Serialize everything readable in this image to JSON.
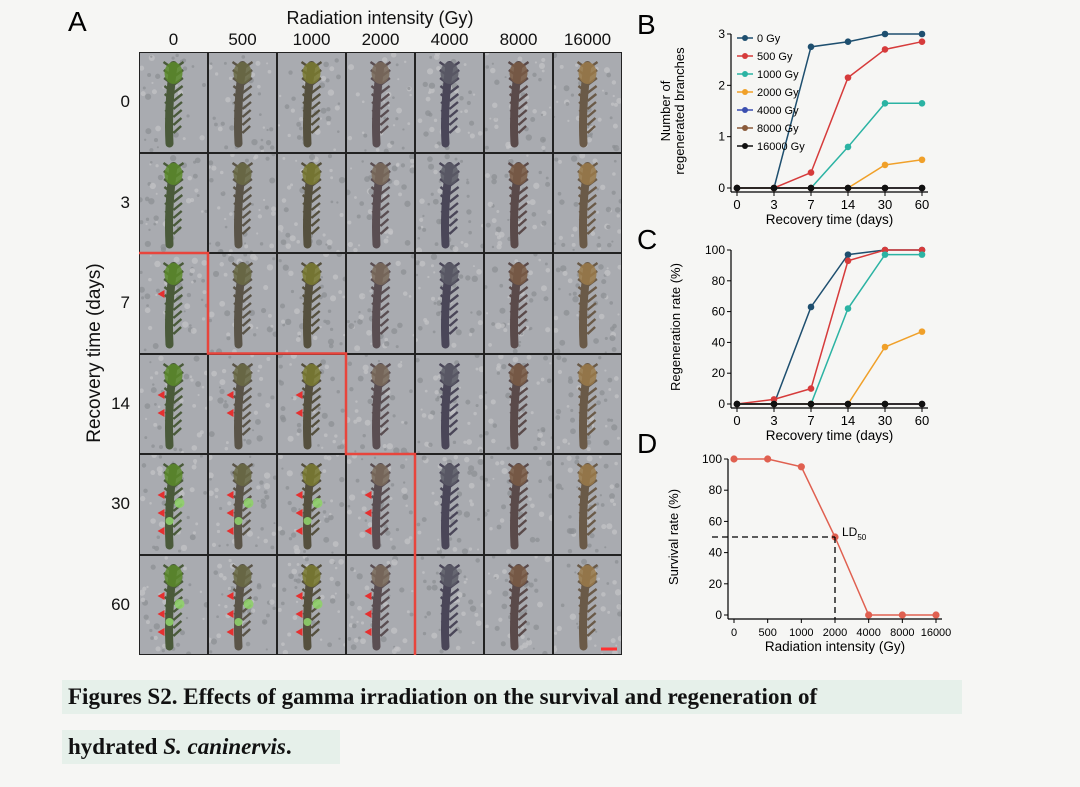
{
  "panel_a": {
    "letter": "A",
    "top_title": "Radiation intensity (Gy)",
    "columns": [
      "0",
      "500",
      "1000",
      "2000",
      "4000",
      "8000",
      "16000"
    ],
    "rows": [
      "0",
      "3",
      "7",
      "14",
      "30",
      "60"
    ],
    "y_title": "Recovery time (days)",
    "scale_bar": "1 cm"
  },
  "caption": {
    "line1": "Figures S2. Effects of gamma irradiation on the survival and regeneration of",
    "line2_prefix": "hydrated ",
    "line2_italic": "S. caninervis",
    "line2_suffix": "."
  },
  "colors": {
    "0 Gy": "#1e4f6f",
    "500 Gy": "#d63b3b",
    "1000 Gy": "#2bb3a3",
    "2000 Gy": "#f0a029",
    "4000 Gy": "#3b4fb0",
    "8000 Gy": "#8a5a3a",
    "16000 Gy": "#111111",
    "highlight": "#e8453c"
  },
  "chart_data": [
    {
      "panel": "B",
      "type": "line",
      "xlabel": "Recovery time (days)",
      "ylabel": "Number of regenerated branches",
      "x": [
        "0",
        "3",
        "7",
        "14",
        "30",
        "60"
      ],
      "ylim": [
        0,
        3
      ],
      "yticks": [
        "0",
        "1",
        "2",
        "3"
      ],
      "legend": "top-left",
      "series": [
        {
          "name": "0 Gy",
          "values": [
            0,
            0,
            2.75,
            2.85,
            3.0,
            3.0
          ]
        },
        {
          "name": "500 Gy",
          "values": [
            0,
            0,
            0.3,
            2.15,
            2.7,
            2.85
          ]
        },
        {
          "name": "1000 Gy",
          "values": [
            0,
            0,
            0,
            0.8,
            1.65,
            1.65
          ]
        },
        {
          "name": "2000 Gy",
          "values": [
            0,
            0,
            0,
            0,
            0.45,
            0.55
          ]
        },
        {
          "name": "4000 Gy",
          "values": [
            0,
            0,
            0,
            0,
            0,
            0
          ]
        },
        {
          "name": "8000 Gy",
          "values": [
            0,
            0,
            0,
            0,
            0,
            0
          ]
        },
        {
          "name": "16000 Gy",
          "values": [
            0,
            0,
            0,
            0,
            0,
            0
          ]
        }
      ]
    },
    {
      "panel": "C",
      "type": "line",
      "xlabel": "Recovery time (days)",
      "ylabel": "Regeneration rate (%)",
      "x": [
        "0",
        "3",
        "7",
        "14",
        "30",
        "60"
      ],
      "ylim": [
        0,
        100
      ],
      "yticks": [
        "0",
        "20",
        "40",
        "60",
        "80",
        "100"
      ],
      "series": [
        {
          "name": "0 Gy",
          "values": [
            0,
            0,
            63,
            97,
            100,
            100
          ]
        },
        {
          "name": "500 Gy",
          "values": [
            0,
            3,
            10,
            93,
            100,
            100
          ]
        },
        {
          "name": "1000 Gy",
          "values": [
            0,
            0,
            0,
            62,
            97,
            97
          ]
        },
        {
          "name": "2000 Gy",
          "values": [
            0,
            0,
            0,
            0,
            37,
            47
          ]
        },
        {
          "name": "4000 Gy",
          "values": [
            0,
            0,
            0,
            0,
            0,
            0
          ]
        },
        {
          "name": "8000 Gy",
          "values": [
            0,
            0,
            0,
            0,
            0,
            0
          ]
        },
        {
          "name": "16000 Gy",
          "values": [
            0,
            0,
            0,
            0,
            0,
            0
          ]
        }
      ]
    },
    {
      "panel": "D",
      "type": "line",
      "xlabel": "Radiation intensity (Gy)",
      "ylabel": "Survival rate (%)",
      "x": [
        "0",
        "500",
        "1000",
        "2000",
        "4000",
        "8000",
        "16000"
      ],
      "ylim": [
        0,
        100
      ],
      "yticks": [
        "0",
        "20",
        "40",
        "60",
        "80",
        "100"
      ],
      "series": [
        {
          "values": [
            100,
            100,
            95,
            50,
            0,
            0,
            0
          ]
        }
      ],
      "annotation": {
        "label": "LD",
        "subscript": "50",
        "x": "2000",
        "y": 50
      }
    }
  ]
}
